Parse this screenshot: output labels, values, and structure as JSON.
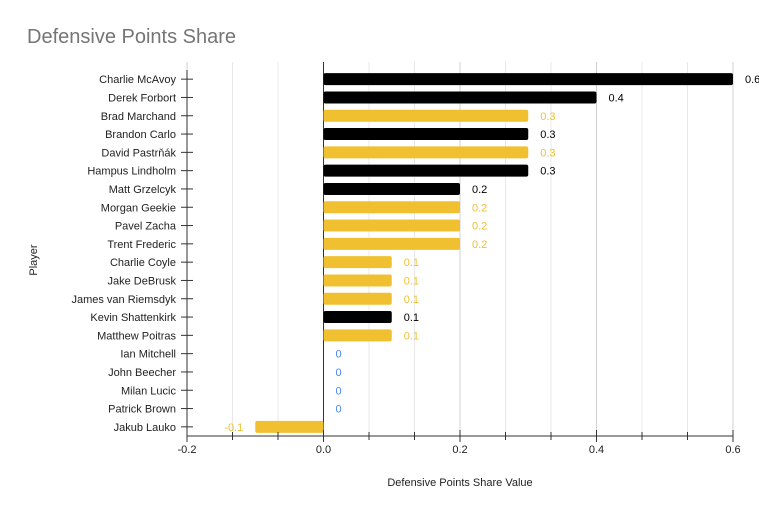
{
  "chart_data": {
    "type": "bar",
    "orientation": "horizontal",
    "title": "Defensive Points Share",
    "xlabel": "Defensive Points Share Value",
    "ylabel": "Player",
    "xlim": [
      -0.2,
      0.6
    ],
    "xticks": [
      -0.2,
      0.0,
      0.2,
      0.4,
      0.6
    ],
    "xtick_labels": [
      "-0.2",
      "0.0",
      "0.2",
      "0.4",
      "0.6"
    ],
    "grid": true,
    "legend": "none",
    "colors": {
      "black": "#000000",
      "gold": "#f0c030",
      "zero_label": "#4a86e8"
    },
    "categories": [
      "Charlie McAvoy",
      "Derek Forbort",
      "Brad Marchand",
      "Brandon Carlo",
      "David Pastrňák",
      "Hampus Lindholm",
      "Matt Grzelcyk",
      "Morgan Geekie",
      "Pavel Zacha",
      "Trent Frederic",
      "Charlie Coyle",
      "Jake DeBrusk",
      "James van Riemsdyk",
      "Kevin Shattenkirk",
      "Matthew Poitras",
      "Ian Mitchell",
      "John Beecher",
      "Milan Lucic",
      "Patrick Brown",
      "Jakub Lauko"
    ],
    "values": [
      0.6,
      0.4,
      0.3,
      0.3,
      0.3,
      0.3,
      0.2,
      0.2,
      0.2,
      0.2,
      0.1,
      0.1,
      0.1,
      0.1,
      0.1,
      0,
      0,
      0,
      0,
      -0.1
    ],
    "data_labels": [
      "0.6",
      "0.4",
      "0.3",
      "0.3",
      "0.3",
      "0.3",
      "0.2",
      "0.2",
      "0.2",
      "0.2",
      "0.1",
      "0.1",
      "0.1",
      "0.1",
      "0.1",
      "0",
      "0",
      "0",
      "0",
      "-0.1"
    ],
    "bar_colors": [
      "black",
      "black",
      "gold",
      "black",
      "gold",
      "black",
      "black",
      "gold",
      "gold",
      "gold",
      "gold",
      "gold",
      "gold",
      "black",
      "gold",
      "gold",
      "gold",
      "gold",
      "gold",
      "gold"
    ]
  }
}
